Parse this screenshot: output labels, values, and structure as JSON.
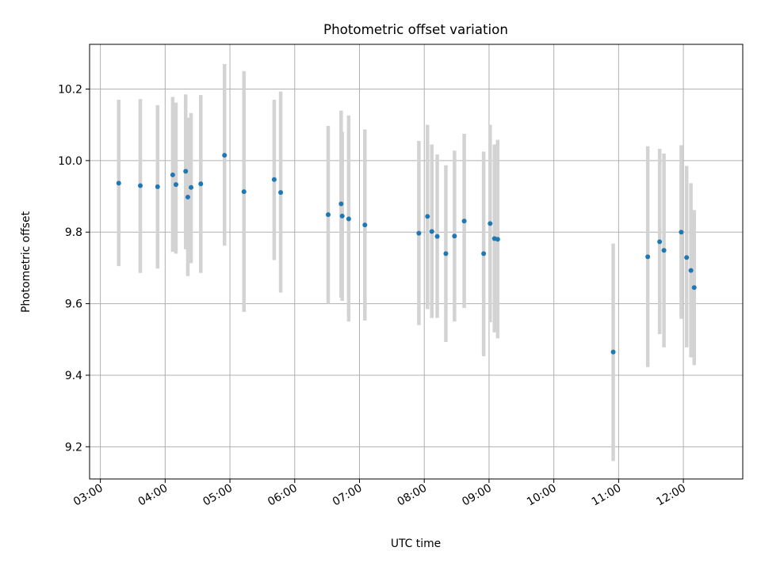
{
  "chart_data": {
    "type": "scatter",
    "title": "Photometric offset variation",
    "xlabel": "UTC time",
    "ylabel": "Photometric offset",
    "x_ticks": [
      "03:00",
      "04:00",
      "05:00",
      "06:00",
      "07:00",
      "08:00",
      "09:00",
      "10:00",
      "11:00",
      "12:00"
    ],
    "y_ticks": [
      "9.2",
      "9.4",
      "9.6",
      "9.8",
      "10.0",
      "10.2"
    ],
    "xlim": [
      "02:50",
      "12:55"
    ],
    "ylim": [
      9.11,
      10.325
    ],
    "grid": true,
    "colors": {
      "points": "#1f77b4",
      "errorbars": "#d3d3d3",
      "grid": "#b0b0b0"
    },
    "series": [
      {
        "points": [
          {
            "x": "03:17",
            "y": 9.937,
            "lo": 9.705,
            "hi": 10.17
          },
          {
            "x": "03:37",
            "y": 9.93,
            "lo": 9.686,
            "hi": 10.172
          },
          {
            "x": "03:53",
            "y": 9.927,
            "lo": 9.698,
            "hi": 10.155
          },
          {
            "x": "04:07",
            "y": 9.96,
            "lo": 9.745,
            "hi": 10.178
          },
          {
            "x": "04:10",
            "y": 9.933,
            "lo": 9.74,
            "hi": 10.162
          },
          {
            "x": "04:19",
            "y": 9.97,
            "lo": 9.752,
            "hi": 10.185
          },
          {
            "x": "04:21",
            "y": 9.898,
            "lo": 9.677,
            "hi": 10.12
          },
          {
            "x": "04:24",
            "y": 9.925,
            "lo": 9.713,
            "hi": 10.133
          },
          {
            "x": "04:33",
            "y": 9.935,
            "lo": 9.686,
            "hi": 10.183
          },
          {
            "x": "04:55",
            "y": 10.015,
            "lo": 9.762,
            "hi": 10.27
          },
          {
            "x": "05:13",
            "y": 9.913,
            "lo": 9.577,
            "hi": 10.25
          },
          {
            "x": "05:41",
            "y": 9.947,
            "lo": 9.722,
            "hi": 10.17
          },
          {
            "x": "05:47",
            "y": 9.911,
            "lo": 9.631,
            "hi": 10.193
          },
          {
            "x": "06:31",
            "y": 9.849,
            "lo": 9.6,
            "hi": 10.097
          },
          {
            "x": "06:43",
            "y": 9.879,
            "lo": 9.617,
            "hi": 10.14
          },
          {
            "x": "06:44",
            "y": 9.845,
            "lo": 9.608,
            "hi": 10.08
          },
          {
            "x": "06:50",
            "y": 9.837,
            "lo": 9.55,
            "hi": 10.126
          },
          {
            "x": "07:05",
            "y": 9.82,
            "lo": 9.553,
            "hi": 10.087
          },
          {
            "x": "07:55",
            "y": 9.797,
            "lo": 9.54,
            "hi": 10.055
          },
          {
            "x": "08:03",
            "y": 9.844,
            "lo": 9.585,
            "hi": 10.1
          },
          {
            "x": "08:07",
            "y": 9.802,
            "lo": 9.56,
            "hi": 10.045
          },
          {
            "x": "08:12",
            "y": 9.788,
            "lo": 9.56,
            "hi": 10.017
          },
          {
            "x": "08:20",
            "y": 9.74,
            "lo": 9.493,
            "hi": 9.987
          },
          {
            "x": "08:28",
            "y": 9.789,
            "lo": 9.55,
            "hi": 10.028
          },
          {
            "x": "08:37",
            "y": 9.831,
            "lo": 9.588,
            "hi": 10.075
          },
          {
            "x": "08:55",
            "y": 9.74,
            "lo": 9.453,
            "hi": 10.025
          },
          {
            "x": "09:01",
            "y": 9.824,
            "lo": 9.548,
            "hi": 10.1
          },
          {
            "x": "09:05",
            "y": 9.782,
            "lo": 9.52,
            "hi": 10.045
          },
          {
            "x": "09:08",
            "y": 9.78,
            "lo": 9.503,
            "hi": 10.058
          },
          {
            "x": "10:55",
            "y": 9.465,
            "lo": 9.16,
            "hi": 9.768
          },
          {
            "x": "11:27",
            "y": 9.731,
            "lo": 9.423,
            "hi": 10.04
          },
          {
            "x": "11:38",
            "y": 9.773,
            "lo": 9.515,
            "hi": 10.033
          },
          {
            "x": "11:42",
            "y": 9.749,
            "lo": 9.478,
            "hi": 10.02
          },
          {
            "x": "11:58",
            "y": 9.8,
            "lo": 9.558,
            "hi": 10.043
          },
          {
            "x": "12:03",
            "y": 9.729,
            "lo": 9.478,
            "hi": 9.985
          },
          {
            "x": "12:07",
            "y": 9.693,
            "lo": 9.45,
            "hi": 9.937
          },
          {
            "x": "12:10",
            "y": 9.645,
            "lo": 9.428,
            "hi": 9.862
          }
        ]
      }
    ]
  }
}
